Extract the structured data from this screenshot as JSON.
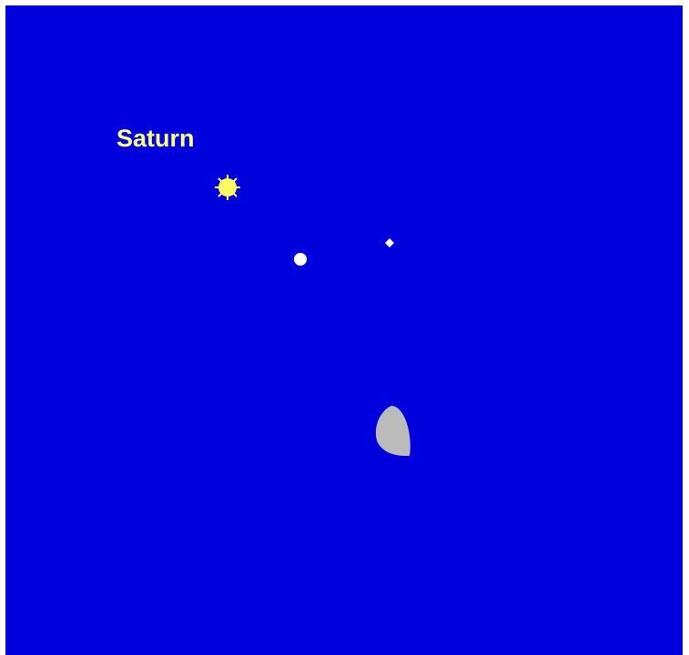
{
  "labels": {
    "planet": "Saturn"
  }
}
